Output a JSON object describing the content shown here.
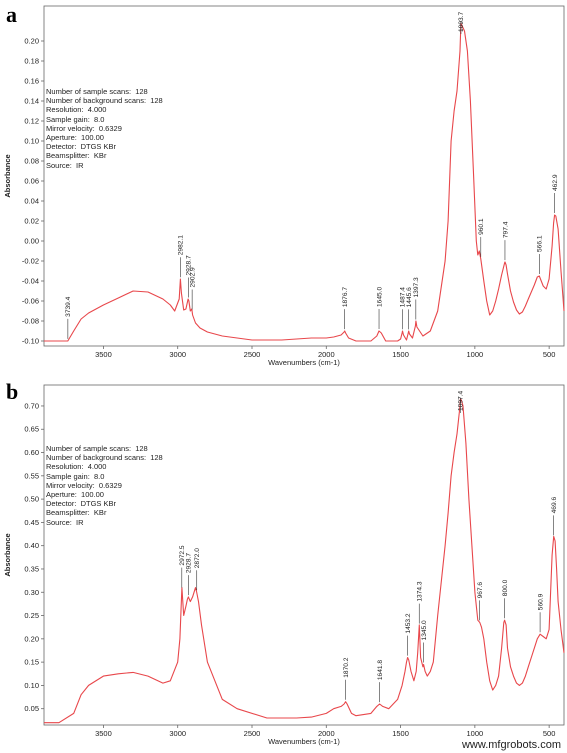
{
  "panels": [
    {
      "label": "a",
      "info": [
        "Number of sample scans:  128",
        "Number of background scans:  128",
        "Resolution:  4.000",
        "Sample gain:  8.0",
        "Mirror velocity:  0.6329",
        "Aperture:  100.00",
        "Detector:  DTGS KBr",
        "Beamsplitter:  KBr",
        "Source:  IR"
      ]
    },
    {
      "label": "b",
      "info": [
        "Number of sample scans:  128",
        "Number of background scans:  128",
        "Resolution:  4.000",
        "Sample gain:  8.0",
        "Mirror velocity:  0.6329",
        "Aperture:  100.00",
        "Detector:  DTGS KBr",
        "Beamsplitter:  KBr",
        "Source:  IR"
      ]
    }
  ],
  "colors": {
    "line": "#e8474b",
    "axis": "#666666",
    "text": "#222222"
  },
  "watermark": "www.mfgrobots.com",
  "chart_data": [
    {
      "type": "line",
      "xlabel": "Wavenumbers (cm-1)",
      "ylabel": "Absorbance",
      "xlim": [
        3900,
        400
      ],
      "ylim": [
        -0.105,
        0.235
      ],
      "xticks": [
        3500,
        3000,
        2500,
        2000,
        1500,
        1000,
        500
      ],
      "yticks": [
        -0.1,
        -0.08,
        -0.06,
        -0.04,
        -0.02,
        0.0,
        0.02,
        0.04,
        0.06,
        0.08,
        0.1,
        0.12,
        0.14,
        0.16,
        0.18,
        0.2
      ],
      "ytick_labels": [
        "-0.10",
        "-0.08",
        "-0.06",
        "-0.04",
        "-0.02",
        "0.00",
        "0.02",
        "0.04",
        "0.06",
        "0.08",
        "0.10",
        "0.12",
        "0.14",
        "0.16",
        "0.18",
        "0.20"
      ],
      "series": [
        {
          "x": [
            3900,
            3800,
            3740,
            3700,
            3650,
            3600,
            3500,
            3400,
            3300,
            3200,
            3100,
            3050,
            3020,
            2990,
            2982,
            2975,
            2960,
            2945,
            2930,
            2925,
            2915,
            2905,
            2900,
            2880,
            2850,
            2800,
            2700,
            2500,
            2300,
            2100,
            2000,
            1950,
            1900,
            1880,
            1876,
            1870,
            1850,
            1800,
            1700,
            1660,
            1645,
            1630,
            1600,
            1560,
            1520,
            1500,
            1490,
            1487,
            1480,
            1460,
            1450,
            1445,
            1440,
            1420,
            1400,
            1397,
            1390,
            1350,
            1300,
            1250,
            1200,
            1180,
            1160,
            1140,
            1120,
            1100,
            1094,
            1085,
            1070,
            1050,
            1030,
            1010,
            990,
            980,
            970,
            960,
            940,
            920,
            900,
            880,
            860,
            840,
            820,
            800,
            797,
            790,
            780,
            760,
            740,
            720,
            700,
            680,
            660,
            640,
            620,
            600,
            580,
            566,
            540,
            520,
            500,
            480,
            470,
            463,
            455,
            440,
            420,
            400
          ],
          "y": [
            -0.1,
            -0.1,
            -0.1,
            -0.09,
            -0.078,
            -0.072,
            -0.064,
            -0.057,
            -0.05,
            -0.051,
            -0.058,
            -0.064,
            -0.07,
            -0.058,
            -0.038,
            -0.052,
            -0.069,
            -0.068,
            -0.058,
            -0.06,
            -0.07,
            -0.068,
            -0.074,
            -0.082,
            -0.087,
            -0.091,
            -0.095,
            -0.099,
            -0.099,
            -0.097,
            -0.097,
            -0.096,
            -0.094,
            -0.091,
            -0.09,
            -0.092,
            -0.097,
            -0.1,
            -0.1,
            -0.095,
            -0.09,
            -0.092,
            -0.1,
            -0.1,
            -0.1,
            -0.098,
            -0.092,
            -0.09,
            -0.094,
            -0.099,
            -0.093,
            -0.09,
            -0.093,
            -0.097,
            -0.085,
            -0.08,
            -0.086,
            -0.095,
            -0.09,
            -0.07,
            -0.02,
            0.02,
            0.1,
            0.13,
            0.15,
            0.19,
            0.218,
            0.215,
            0.21,
            0.19,
            0.14,
            0.07,
            0.0,
            -0.014,
            -0.01,
            -0.018,
            -0.04,
            -0.06,
            -0.074,
            -0.07,
            -0.06,
            -0.048,
            -0.034,
            -0.022,
            -0.021,
            -0.024,
            -0.033,
            -0.05,
            -0.061,
            -0.069,
            -0.073,
            -0.071,
            -0.065,
            -0.058,
            -0.051,
            -0.044,
            -0.036,
            -0.035,
            -0.045,
            -0.048,
            -0.038,
            -0.005,
            0.018,
            0.026,
            0.025,
            0.012,
            -0.03,
            -0.07
          ]
        }
      ],
      "annotations": [
        {
          "x": 3739.4,
          "label": "3739.4"
        },
        {
          "x": 2982.1,
          "label": "2982.1"
        },
        {
          "x": 2928.7,
          "label": "2928.7"
        },
        {
          "x": 2902.9,
          "label": "2902.9"
        },
        {
          "x": 1876.7,
          "label": "1876.7"
        },
        {
          "x": 1645.0,
          "label": "1645.0"
        },
        {
          "x": 1487.4,
          "label": "1487.4"
        },
        {
          "x": 1445.6,
          "label": "1445.6"
        },
        {
          "x": 1397.3,
          "label": "1397.3"
        },
        {
          "x": 1093.7,
          "label": "1093.7"
        },
        {
          "x": 960.1,
          "label": "960.1"
        },
        {
          "x": 797.4,
          "label": "797.4"
        },
        {
          "x": 566.1,
          "label": "566.1"
        },
        {
          "x": 462.9,
          "label": "462.9"
        }
      ]
    },
    {
      "type": "line",
      "xlabel": "Wavenumbers (cm-1)",
      "ylabel": "Absorbance",
      "xlim": [
        3900,
        400
      ],
      "ylim": [
        0.015,
        0.745
      ],
      "xticks": [
        3500,
        3000,
        2500,
        2000,
        1500,
        1000,
        500
      ],
      "yticks": [
        0.05,
        0.1,
        0.15,
        0.2,
        0.25,
        0.3,
        0.35,
        0.4,
        0.45,
        0.5,
        0.55,
        0.6,
        0.65,
        0.7
      ],
      "ytick_labels": [
        "0.05",
        "0.10",
        "0.15",
        "0.20",
        "0.25",
        "0.30",
        "0.35",
        "0.40",
        "0.45",
        "0.50",
        "0.55",
        "0.60",
        "0.65",
        "0.70"
      ],
      "series": [
        {
          "x": [
            3900,
            3800,
            3700,
            3650,
            3600,
            3500,
            3400,
            3300,
            3200,
            3100,
            3050,
            3000,
            2985,
            2972,
            2960,
            2945,
            2935,
            2928,
            2915,
            2900,
            2880,
            2872,
            2860,
            2840,
            2800,
            2700,
            2600,
            2400,
            2200,
            2100,
            2000,
            1950,
            1900,
            1880,
            1870,
            1860,
            1830,
            1800,
            1700,
            1660,
            1641,
            1620,
            1580,
            1520,
            1490,
            1470,
            1460,
            1453,
            1445,
            1430,
            1410,
            1395,
            1385,
            1374,
            1365,
            1350,
            1345,
            1335,
            1320,
            1300,
            1280,
            1250,
            1200,
            1180,
            1160,
            1140,
            1120,
            1100,
            1097,
            1090,
            1080,
            1060,
            1040,
            1020,
            1000,
            980,
            967,
            955,
            940,
            920,
            900,
            880,
            860,
            840,
            820,
            805,
            800,
            790,
            780,
            760,
            740,
            720,
            700,
            680,
            660,
            640,
            620,
            600,
            580,
            561,
            540,
            520,
            500,
            490,
            480,
            469,
            460,
            450,
            440,
            420,
            400
          ],
          "y": [
            0.02,
            0.02,
            0.04,
            0.08,
            0.1,
            0.12,
            0.125,
            0.128,
            0.12,
            0.105,
            0.11,
            0.15,
            0.2,
            0.31,
            0.25,
            0.27,
            0.285,
            0.29,
            0.28,
            0.29,
            0.31,
            0.3,
            0.28,
            0.23,
            0.15,
            0.07,
            0.05,
            0.03,
            0.03,
            0.032,
            0.04,
            0.05,
            0.055,
            0.06,
            0.065,
            0.06,
            0.04,
            0.035,
            0.04,
            0.055,
            0.06,
            0.055,
            0.05,
            0.07,
            0.1,
            0.13,
            0.15,
            0.16,
            0.155,
            0.13,
            0.11,
            0.13,
            0.17,
            0.23,
            0.16,
            0.14,
            0.145,
            0.13,
            0.12,
            0.13,
            0.15,
            0.25,
            0.4,
            0.47,
            0.55,
            0.6,
            0.64,
            0.7,
            0.715,
            0.712,
            0.7,
            0.62,
            0.5,
            0.4,
            0.3,
            0.24,
            0.235,
            0.225,
            0.2,
            0.15,
            0.11,
            0.09,
            0.1,
            0.12,
            0.18,
            0.235,
            0.24,
            0.23,
            0.18,
            0.14,
            0.12,
            0.105,
            0.1,
            0.105,
            0.12,
            0.14,
            0.16,
            0.18,
            0.2,
            0.21,
            0.205,
            0.2,
            0.22,
            0.3,
            0.38,
            0.42,
            0.41,
            0.35,
            0.28,
            0.22,
            0.17
          ]
        }
      ],
      "annotations": [
        {
          "x": 2972.5,
          "label": "2972.5"
        },
        {
          "x": 2928.7,
          "label": "2928.7"
        },
        {
          "x": 2872.0,
          "label": "2872.0"
        },
        {
          "x": 1870.2,
          "label": "1870.2"
        },
        {
          "x": 1641.8,
          "label": "1641.8"
        },
        {
          "x": 1453.2,
          "label": "1453.2"
        },
        {
          "x": 1374.3,
          "label": "1374.3"
        },
        {
          "x": 1345.0,
          "label": "1345.0"
        },
        {
          "x": 1097.4,
          "label": "1097.4"
        },
        {
          "x": 967.6,
          "label": "967.6"
        },
        {
          "x": 800.0,
          "label": "800.0"
        },
        {
          "x": 560.9,
          "label": "560.9"
        },
        {
          "x": 469.6,
          "label": "469.6"
        }
      ]
    }
  ]
}
